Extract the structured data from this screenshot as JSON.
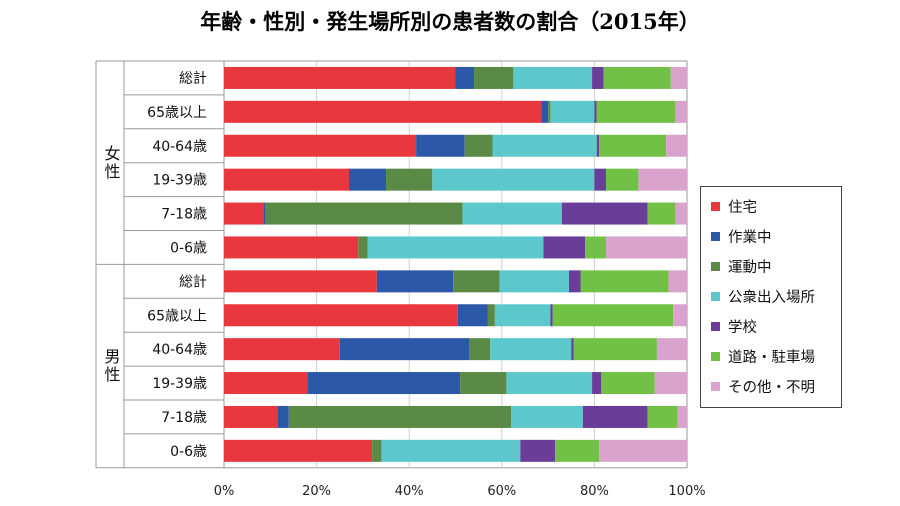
{
  "chart_data": {
    "type": "bar",
    "orientation": "horizontal",
    "stacked": "percent",
    "title": "年齢・性別・発生場所別の患者数の割合（2015年）",
    "groups": [
      {
        "label": "女性",
        "categories": [
          "総計",
          "65歳以上",
          "40-64歳",
          "19-39歳",
          "7-18歳",
          "0-6歳"
        ]
      },
      {
        "label": "男性",
        "categories": [
          "総計",
          "65歳以上",
          "40-64歳",
          "19-39歳",
          "7-18歳",
          "0-6歳"
        ]
      }
    ],
    "xlim": [
      0,
      100
    ],
    "xticks": [
      "0%",
      "20%",
      "40%",
      "60%",
      "80%",
      "100%"
    ],
    "legend_position": "right",
    "series": [
      {
        "name": "住宅",
        "color": "#e8383d",
        "values": [
          50,
          68.5,
          41.5,
          27,
          8.5,
          29,
          33,
          50.5,
          25,
          18,
          11.5,
          32
        ]
      },
      {
        "name": "作業中",
        "color": "#2b59a8",
        "values": [
          4,
          1.5,
          10.5,
          8,
          0.5,
          0,
          16.5,
          6.5,
          28,
          33,
          2.5,
          0
        ]
      },
      {
        "name": "運動中",
        "color": "#5a8a46",
        "values": [
          8.5,
          0.5,
          6,
          10,
          42.5,
          2,
          10,
          1.5,
          4.5,
          10,
          48,
          2
        ]
      },
      {
        "name": "公衆出入場所",
        "color": "#5cc8cc",
        "values": [
          17,
          9.5,
          22.5,
          35,
          21.5,
          38,
          15,
          12,
          17.5,
          18.5,
          15.5,
          30
        ]
      },
      {
        "name": "学校",
        "color": "#6a3d98",
        "values": [
          2.5,
          0.5,
          0.5,
          2.5,
          18.5,
          9,
          2.5,
          0.5,
          0.5,
          2,
          14,
          7.5
        ]
      },
      {
        "name": "道路・駐車場",
        "color": "#72c147",
        "values": [
          14.5,
          17,
          14.5,
          7,
          6,
          4.5,
          19,
          26,
          18,
          11.5,
          6.5,
          9.5
        ]
      },
      {
        "name": "その他・不明",
        "color": "#d9a3cd",
        "values": [
          3.5,
          2.5,
          4.5,
          10.5,
          2.5,
          17.5,
          4,
          3,
          6.5,
          7,
          2,
          19
        ]
      }
    ]
  }
}
